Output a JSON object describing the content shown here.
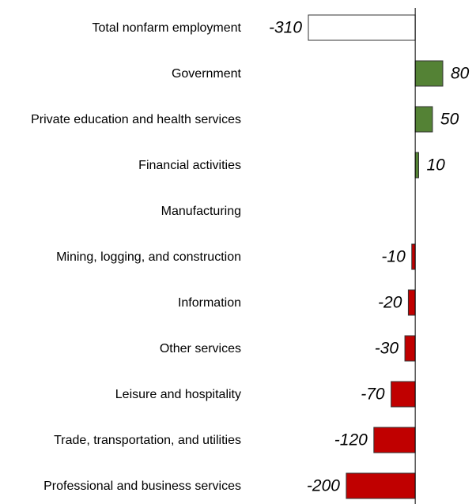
{
  "chart_data": {
    "type": "bar",
    "orientation": "horizontal",
    "categories": [
      "Total nonfarm employment",
      "Government",
      "Private education and health services",
      "Financial activities",
      "Manufacturing",
      "Mining, logging, and construction",
      "Information",
      "Other services",
      "Leisure and hospitality",
      "Trade, transportation, and utilities",
      "Professional and business services"
    ],
    "values": [
      -310,
      80,
      50,
      10,
      0,
      -10,
      -20,
      -30,
      -70,
      -120,
      -200
    ],
    "colors": [
      "#ffffff",
      "#548235",
      "#548235",
      "#548235",
      "#548235",
      "#c00000",
      "#c00000",
      "#c00000",
      "#c00000",
      "#c00000",
      "#c00000"
    ],
    "xlim": [
      -310,
      80
    ]
  }
}
